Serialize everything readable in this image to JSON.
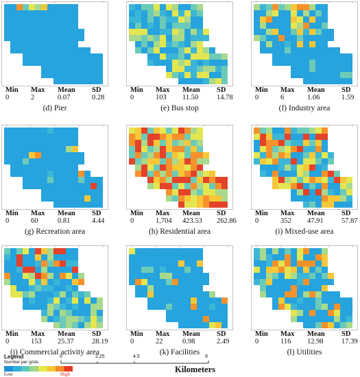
{
  "panels": [
    {
      "id": "d",
      "caption": "(d) Pier",
      "min": "0",
      "max": "2",
      "mean": "0.07",
      "sd": "0.28",
      "pattern": "pier"
    },
    {
      "id": "e",
      "caption": "(e) Bus stop",
      "min": "0",
      "max": "103",
      "mean": "11.50",
      "sd": "14.78",
      "pattern": "busstop"
    },
    {
      "id": "f",
      "caption": "(f) Industry area",
      "min": "0",
      "max": "6",
      "mean": "1.06",
      "sd": "1.59",
      "pattern": "industry"
    },
    {
      "id": "g",
      "caption": "(g) Recreation area",
      "min": "0",
      "max": "60",
      "mean": "0.81",
      "sd": "4.44",
      "pattern": "recreation"
    },
    {
      "id": "h",
      "caption": "(h) Residential area",
      "min": "0",
      "max": "1,704",
      "mean": "423.53",
      "sd": "262.86",
      "pattern": "residential"
    },
    {
      "id": "i",
      "caption": "(i) Mixed-use area",
      "min": "0",
      "max": "352",
      "mean": "47.91",
      "sd": "57.87",
      "pattern": "mixed"
    },
    {
      "id": "j",
      "caption": "(j) Commercial activity area",
      "min": "0",
      "max": "153",
      "mean": "25.37",
      "sd": "28.19",
      "pattern": "commercial"
    },
    {
      "id": "k",
      "caption": "(k) Facilities",
      "min": "0",
      "max": "22",
      "mean": "0.98",
      "sd": "2.49",
      "pattern": "facilities"
    },
    {
      "id": "l",
      "caption": "(l) Utilities",
      "min": "0",
      "max": "116",
      "mean": "12.98",
      "sd": "17.39",
      "pattern": "utilities"
    }
  ],
  "stat_labels": {
    "min": "Min",
    "max": "Max",
    "mean": "Mean",
    "sd": "SD"
  },
  "legend": {
    "title": "Legend",
    "subtitle": "Number per grids",
    "low": "Low",
    "high": "High",
    "ramp_colors": [
      "#1f8fd6",
      "#2fb0d8",
      "#5cc8c0",
      "#9fd98a",
      "#e8e84a",
      "#f8c833",
      "#f48a2a",
      "#e43a25"
    ]
  },
  "scale_bar": {
    "ticks": [
      "0",
      "2.25",
      "4.5",
      "9"
    ],
    "unit": "Kilometers"
  },
  "colors": {
    "background_cell": "#27a3dd",
    "palette": [
      "#27a3dd",
      "#3cb6d6",
      "#6ccab8",
      "#a8d98c",
      "#e3e651",
      "#f7c739",
      "#f5922c",
      "#e4422a"
    ]
  }
}
